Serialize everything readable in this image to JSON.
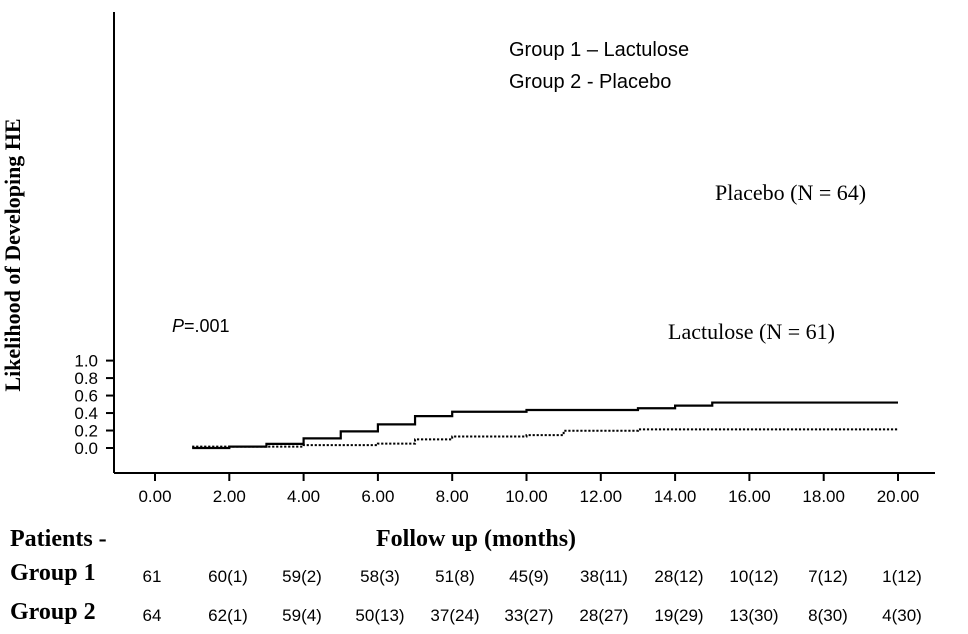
{
  "chart_data": {
    "type": "line",
    "ylabel": "Likelihood of Developing HE",
    "xlabel": "Follow up (months)",
    "xlim": [
      -0.9,
      20.9
    ],
    "ylim": [
      -0.06,
      1.0
    ],
    "xticks": [
      "0.00",
      "2.00",
      "4.00",
      "6.00",
      "8.00",
      "10.00",
      "12.00",
      "14.00",
      "16.00",
      "18.00",
      "20.00"
    ],
    "yticks": [
      "0.0",
      "0.2",
      "0.4",
      "0.6",
      "0.8",
      "1.0"
    ],
    "legend_lines": [
      "Group 1 – Lactulose",
      "Group 2 - Placebo"
    ],
    "pvalue_prefix": "P",
    "pvalue_rest": "=.001",
    "series": [
      {
        "name": "Placebo (N = 64)",
        "style": "solid",
        "color": "#000000",
        "x": [
          1,
          2,
          3,
          4,
          5,
          6,
          7,
          8,
          10,
          13,
          14,
          15,
          20
        ],
        "y": [
          0.0,
          0.016,
          0.047,
          0.11,
          0.19,
          0.27,
          0.365,
          0.415,
          0.435,
          0.455,
          0.485,
          0.52,
          0.52
        ]
      },
      {
        "name": "Lactulose (N = 61)",
        "style": "dotted",
        "color": "#000000",
        "x": [
          1,
          4,
          6,
          7,
          8,
          10,
          11,
          13,
          20
        ],
        "y": [
          0.016,
          0.033,
          0.05,
          0.098,
          0.131,
          0.148,
          0.197,
          0.213,
          0.213
        ]
      }
    ]
  },
  "risk_table": {
    "header": "Patients -",
    "rows": [
      {
        "label": "Group 1",
        "values": [
          "61",
          "60(1)",
          "59(2)",
          "58(3)",
          "51(8)",
          "45(9)",
          "38(11)",
          "28(12)",
          "10(12)",
          "7(12)",
          "1(12)"
        ]
      },
      {
        "label": "Group 2",
        "values": [
          "64",
          "62(1)",
          "59(4)",
          "50(13)",
          "37(24)",
          "33(27)",
          "28(27)",
          "19(29)",
          "13(30)",
          "8(30)",
          "4(30)"
        ]
      }
    ]
  }
}
